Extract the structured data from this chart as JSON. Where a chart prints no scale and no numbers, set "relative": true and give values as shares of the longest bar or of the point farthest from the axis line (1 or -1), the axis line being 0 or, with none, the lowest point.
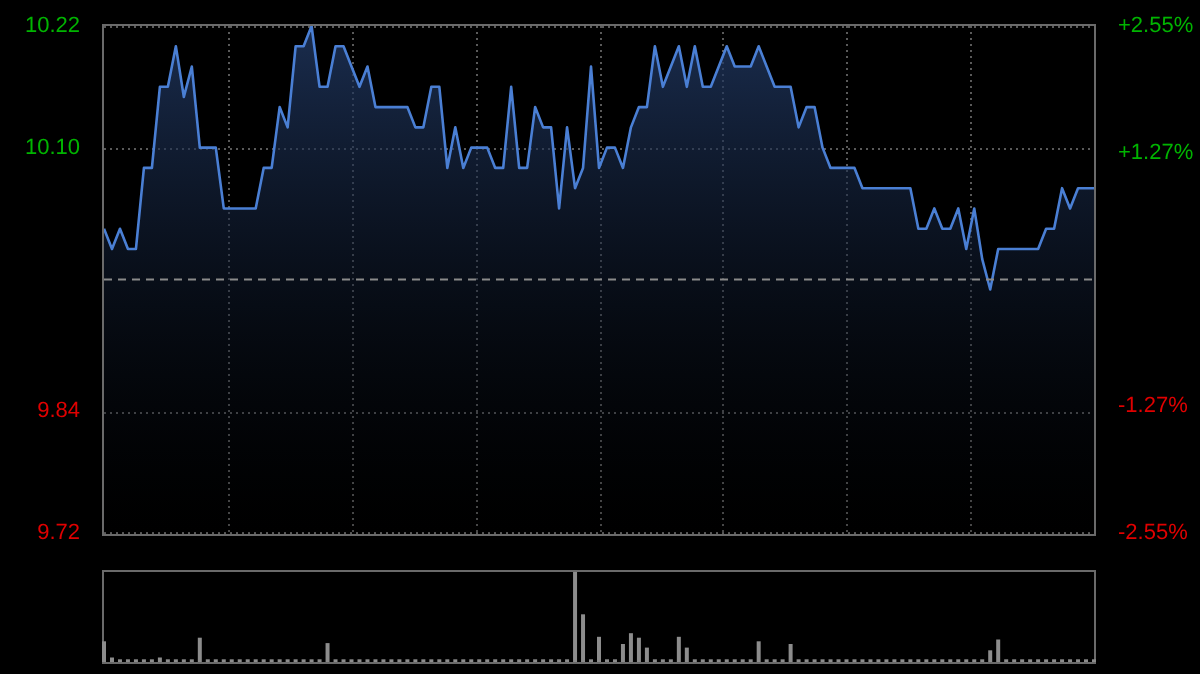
{
  "chart_data": [
    {
      "type": "area",
      "categories": [
        null,
        null,
        null,
        null,
        null,
        null,
        null,
        null,
        null,
        null,
        null,
        null,
        null,
        null,
        null,
        null,
        null,
        null,
        null,
        null,
        null,
        null,
        null,
        null,
        null,
        null,
        null,
        null,
        null,
        null,
        null,
        null,
        null,
        null,
        null,
        null,
        null,
        null,
        null,
        null,
        null,
        null,
        null,
        null,
        null,
        null,
        null,
        null,
        null,
        null,
        null,
        null,
        null,
        null,
        null,
        null,
        null,
        null,
        null,
        null,
        null,
        null,
        null,
        null,
        null,
        null,
        null,
        null,
        null,
        null,
        null,
        null,
        null,
        null,
        null,
        null,
        null,
        null,
        null,
        null,
        null,
        null,
        null,
        null,
        null,
        null,
        null,
        null,
        null,
        null,
        null,
        null,
        null,
        null,
        null,
        null,
        null,
        null,
        null,
        null,
        null,
        null,
        null,
        null,
        null,
        null,
        null,
        null,
        null,
        null,
        null,
        null,
        null,
        null,
        null,
        null,
        null,
        null,
        null,
        null,
        null,
        null,
        null,
        null,
        null
      ],
      "series": [
        {
          "color": "#4a7fd4",
          "values": [
            10.02,
            10.0,
            10.02,
            10.0,
            10.0,
            10.08,
            10.08,
            10.16,
            10.16,
            10.2,
            10.15,
            10.18,
            10.1,
            10.1,
            10.1,
            10.04,
            10.04,
            10.04,
            10.04,
            10.04,
            10.08,
            10.08,
            10.14,
            10.12,
            10.2,
            10.2,
            10.22,
            10.16,
            10.16,
            10.2,
            10.2,
            10.18,
            10.16,
            10.18,
            10.14,
            10.14,
            10.14,
            10.14,
            10.14,
            10.12,
            10.12,
            10.16,
            10.16,
            10.08,
            10.12,
            10.08,
            10.1,
            10.1,
            10.1,
            10.08,
            10.08,
            10.16,
            10.08,
            10.08,
            10.14,
            10.12,
            10.12,
            10.04,
            10.12,
            10.06,
            10.08,
            10.18,
            10.08,
            10.1,
            10.1,
            10.08,
            10.12,
            10.14,
            10.14,
            10.2,
            10.16,
            10.18,
            10.2,
            10.16,
            10.2,
            10.16,
            10.16,
            10.18,
            10.2,
            10.18,
            10.18,
            10.18,
            10.2,
            10.18,
            10.16,
            10.16,
            10.16,
            10.12,
            10.14,
            10.14,
            10.1,
            10.08,
            10.08,
            10.08,
            10.08,
            10.06,
            10.06,
            10.06,
            10.06,
            10.06,
            10.06,
            10.06,
            10.02,
            10.02,
            10.04,
            10.02,
            10.02,
            10.04,
            10.0,
            10.04,
            9.99,
            9.96,
            10.0,
            10.0,
            10.0,
            10.0,
            10.0,
            10.0,
            10.02,
            10.02,
            10.06,
            10.04,
            10.06,
            10.06,
            10.06
          ]
        }
      ],
      "ylim": [
        9.72,
        10.22
      ],
      "yticks": [
        9.72,
        9.84,
        {
          "value": 10.1,
          "label": "10.10"
        },
        10.22
      ],
      "y2lim": [
        -2.55,
        2.55
      ],
      "y2ticks": [
        {
          "value": -2.55,
          "label": "-2.55%"
        },
        {
          "value": -1.27,
          "label": "-1.27%"
        },
        {
          "value": 1.27,
          "label": "+1.27%"
        },
        {
          "value": 2.55,
          "label": "+2.55%"
        }
      ],
      "ref_lines": [
        {
          "axis": "y",
          "value": 9.97,
          "color": "#8a8a8a",
          "line_style": "dashed"
        }
      ],
      "grid": true,
      "legend": false
    },
    {
      "type": "bar",
      "relative": true,
      "color": "#8c8c8c",
      "categories": [
        null,
        null,
        null,
        null,
        null,
        null,
        null,
        null,
        null,
        null,
        null,
        null,
        null,
        null,
        null,
        null,
        null,
        null,
        null,
        null,
        null,
        null,
        null,
        null,
        null,
        null,
        null,
        null,
        null,
        null,
        null,
        null,
        null,
        null,
        null,
        null,
        null,
        null,
        null,
        null,
        null,
        null,
        null,
        null,
        null,
        null,
        null,
        null,
        null,
        null,
        null,
        null,
        null,
        null,
        null,
        null,
        null,
        null,
        null,
        null,
        null,
        null,
        null,
        null,
        null,
        null,
        null,
        null,
        null,
        null,
        null,
        null,
        null,
        null,
        null,
        null,
        null,
        null,
        null,
        null,
        null,
        null,
        null,
        null,
        null,
        null,
        null,
        null,
        null,
        null,
        null,
        null,
        null,
        null,
        null,
        null,
        null,
        null,
        null,
        null,
        null,
        null,
        null,
        null,
        null,
        null,
        null,
        null,
        null,
        null,
        null,
        null,
        null,
        null,
        null,
        null,
        null,
        null,
        null,
        null,
        null,
        null,
        null,
        null,
        null
      ],
      "values": [
        0.23,
        0.05,
        0.03,
        0.03,
        0.03,
        0.03,
        0.03,
        0.05,
        0.03,
        0.03,
        0.03,
        0.03,
        0.27,
        0.03,
        0.03,
        0.03,
        0.03,
        0.03,
        0.03,
        0.03,
        0.03,
        0.03,
        0.03,
        0.03,
        0.03,
        0.03,
        0.03,
        0.03,
        0.21,
        0.03,
        0.03,
        0.03,
        0.03,
        0.03,
        0.03,
        0.03,
        0.03,
        0.03,
        0.03,
        0.03,
        0.03,
        0.03,
        0.03,
        0.03,
        0.03,
        0.03,
        0.03,
        0.03,
        0.03,
        0.03,
        0.03,
        0.03,
        0.03,
        0.03,
        0.03,
        0.03,
        0.03,
        0.03,
        0.03,
        1.0,
        0.53,
        0.03,
        0.28,
        0.03,
        0.03,
        0.2,
        0.32,
        0.27,
        0.16,
        0.03,
        0.03,
        0.03,
        0.28,
        0.16,
        0.03,
        0.03,
        0.03,
        0.03,
        0.03,
        0.03,
        0.03,
        0.03,
        0.23,
        0.03,
        0.03,
        0.03,
        0.2,
        0.03,
        0.03,
        0.03,
        0.03,
        0.03,
        0.03,
        0.03,
        0.03,
        0.03,
        0.03,
        0.03,
        0.03,
        0.03,
        0.03,
        0.03,
        0.03,
        0.03,
        0.03,
        0.03,
        0.03,
        0.03,
        0.03,
        0.03,
        0.03,
        0.13,
        0.25,
        0.03,
        0.03,
        0.03,
        0.03,
        0.03,
        0.03,
        0.03,
        0.03,
        0.03,
        0.03,
        0.03,
        0.03
      ],
      "legend": false
    }
  ]
}
